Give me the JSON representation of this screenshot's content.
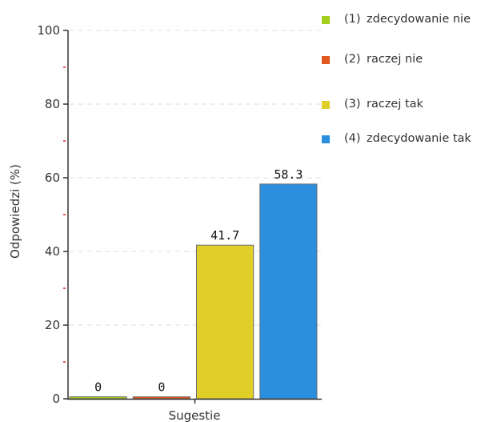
{
  "chart_data": {
    "type": "bar",
    "xlabel": "Sugestie",
    "ylabel": "Odpowiedzi (%)",
    "ylim": [
      0,
      100
    ],
    "yticks": [
      0,
      20,
      40,
      60,
      80,
      100
    ],
    "grid": true,
    "legend_position": "right",
    "categories": [
      "Sugestie"
    ],
    "series": [
      {
        "name": "(1) zdecydowanie nie",
        "values": [
          0
        ],
        "label": "0",
        "color": "#a4cd1c"
      },
      {
        "name": "(2) raczej nie",
        "values": [
          0
        ],
        "label": "0",
        "color": "#e2571f"
      },
      {
        "name": "(3) raczej tak",
        "values": [
          41.7
        ],
        "label": "41.7",
        "color": "#dfcf28"
      },
      {
        "name": "(4) zdecydowanie tak",
        "values": [
          58.3
        ],
        "label": "58.3",
        "color": "#2b8fdd"
      }
    ]
  },
  "legend": {
    "items": [
      {
        "num": "(1)",
        "text": "zdecydowanie nie",
        "color": "#a4cd1c"
      },
      {
        "num": "(2)",
        "text": "raczej nie",
        "color": "#e2571f"
      },
      {
        "num": "(3)",
        "text": "raczej tak",
        "color": "#dfcf28"
      },
      {
        "num": "(4)",
        "text": "zdecydowanie tak",
        "color": "#2b8fdd"
      }
    ]
  }
}
